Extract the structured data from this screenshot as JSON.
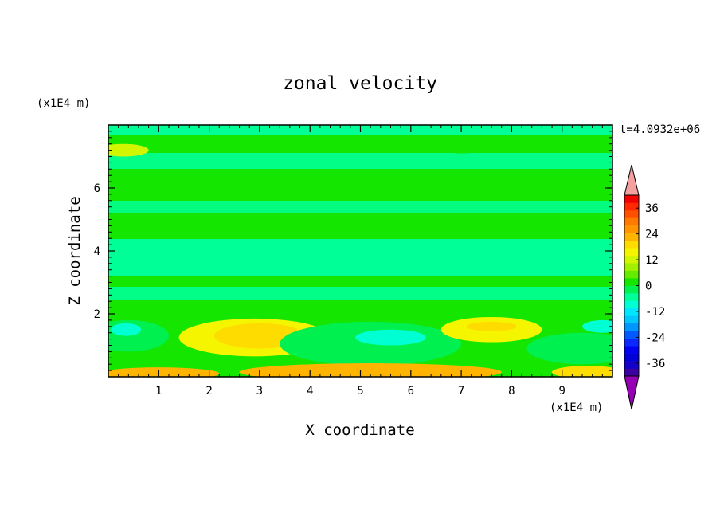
{
  "chart_data": {
    "type": "heatmap",
    "title": "zonal velocity",
    "xlabel": "X coordinate",
    "ylabel": "Z coordinate",
    "x_units": "(x1E4 m)",
    "y_units": "(x1E4 m)",
    "time_label": "t=4.0932e+06",
    "xlim": [
      0,
      10
    ],
    "ylim": [
      0,
      8
    ],
    "x_ticks": [
      1,
      2,
      3,
      4,
      5,
      6,
      7,
      8,
      9
    ],
    "y_ticks": [
      2,
      4,
      6
    ],
    "colorbar": {
      "levels": [
        -42,
        -39,
        -36,
        -33,
        -30,
        -27,
        -24,
        -21,
        -18,
        -15,
        -12,
        -9,
        -6,
        -3,
        0,
        3,
        6,
        9,
        12,
        15,
        18,
        21,
        24,
        27,
        30,
        33,
        36,
        39,
        42
      ],
      "colors": [
        "#3c00a0",
        "#1400c8",
        "#0000d7",
        "#0000f0",
        "#0a28ff",
        "#005aff",
        "#0096ff",
        "#00c8ff",
        "#00e6ff",
        "#00ffd2",
        "#00ff96",
        "#00f050",
        "#14e600",
        "#64eb00",
        "#a0f000",
        "#d2f500",
        "#f5f500",
        "#ffdc00",
        "#ffb400",
        "#ff9600",
        "#ff7800",
        "#ff5000",
        "#ff2800",
        "#f00000"
      ],
      "tick_labels": [
        "36",
        "24",
        "12",
        "0",
        "-12",
        "-24",
        "-36"
      ],
      "tick_values": [
        36,
        24,
        12,
        0,
        -12,
        -24,
        -36
      ],
      "over_color": "#f5a0a0",
      "under_color": "#9600b4"
    },
    "field_features": [
      {
        "kind": "ellipse",
        "x": 2.9,
        "z": 1.25,
        "rx": 1.5,
        "rz": 0.6,
        "value": 6
      },
      {
        "kind": "ellipse",
        "x": 3.0,
        "z": 1.3,
        "rx": 0.9,
        "rz": 0.4,
        "value": 10
      },
      {
        "kind": "ellipse",
        "x": 5.2,
        "z": 1.05,
        "rx": 1.8,
        "rz": 0.7,
        "value": -8
      },
      {
        "kind": "ellipse",
        "x": 5.6,
        "z": 1.25,
        "rx": 0.7,
        "rz": 0.25,
        "value": -15
      },
      {
        "kind": "ellipse",
        "x": 0.4,
        "z": 1.3,
        "rx": 0.8,
        "rz": 0.5,
        "value": -9
      },
      {
        "kind": "ellipse",
        "x": 0.35,
        "z": 1.5,
        "rx": 0.3,
        "rz": 0.2,
        "value": -15
      },
      {
        "kind": "ellipse",
        "x": 7.6,
        "z": 1.5,
        "rx": 1.0,
        "rz": 0.4,
        "value": 6
      },
      {
        "kind": "ellipse",
        "x": 7.6,
        "z": 1.6,
        "rx": 0.5,
        "rz": 0.15,
        "value": 10
      },
      {
        "kind": "ellipse",
        "x": 9.4,
        "z": 0.9,
        "rx": 1.1,
        "rz": 0.5,
        "value": -7
      },
      {
        "kind": "ellipse",
        "x": 9.8,
        "z": 1.6,
        "rx": 0.4,
        "rz": 0.2,
        "value": -14
      },
      {
        "kind": "ellipse",
        "x": 5.2,
        "z": 0.15,
        "rx": 2.6,
        "rz": 0.28,
        "value": 12
      },
      {
        "kind": "ellipse",
        "x": 1.0,
        "z": 0.1,
        "rx": 1.2,
        "rz": 0.2,
        "value": 12
      },
      {
        "kind": "ellipse",
        "x": 9.5,
        "z": 0.15,
        "rx": 0.7,
        "rz": 0.2,
        "value": 9
      },
      {
        "kind": "ellipse",
        "x": 7.0,
        "z": 7.2,
        "rx": 0.3,
        "rz": 0.1,
        "value": -6
      },
      {
        "kind": "ellipse",
        "x": 0.3,
        "z": 7.2,
        "rx": 0.5,
        "rz": 0.2,
        "value": 3
      }
    ]
  }
}
